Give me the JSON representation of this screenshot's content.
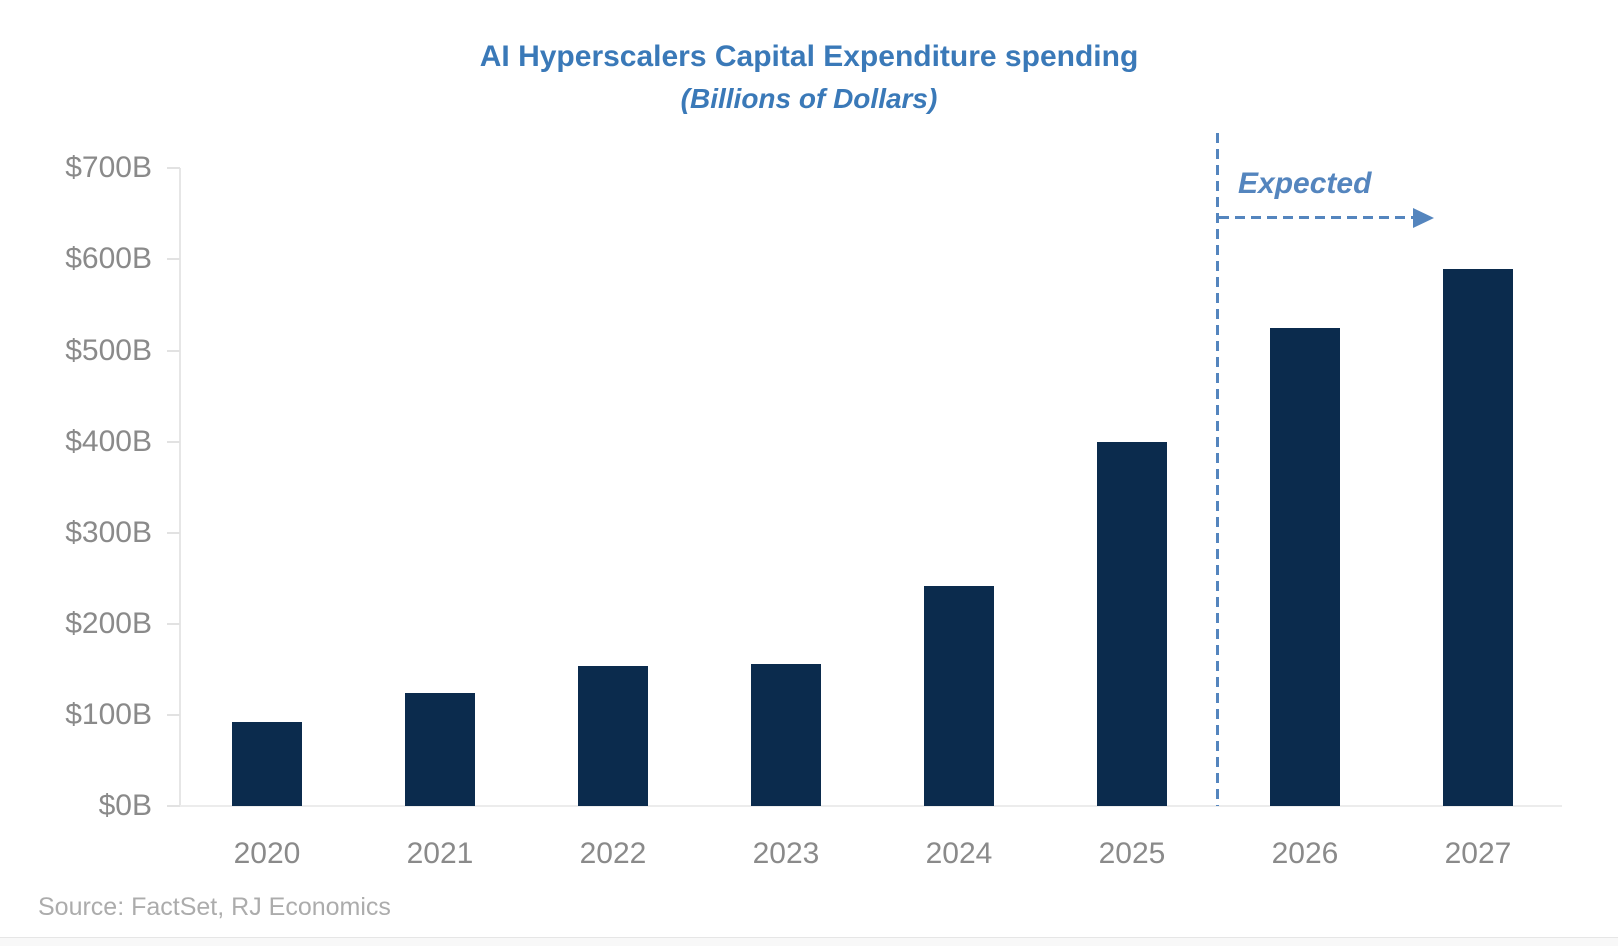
{
  "header": {
    "title_prefix": "AI ",
    "title_misspelled_word": "Hyperscalers",
    "title_suffix": " Capital Expenditure spending",
    "title_full": "AI Hyperscalers Capital Expenditure spending",
    "subtitle": "(Billions of Dollars)"
  },
  "annotation": {
    "expected_label": "Expected"
  },
  "footer": {
    "source": "Source: FactSet, RJ Economics"
  },
  "colors": {
    "bar": "#0B2B4D",
    "title_blue": "#3A79B8",
    "annotation_blue": "#5485BE",
    "squiggle_red": "#E03A2E",
    "axis_text_gray": "#8A8A8A",
    "source_text_gray": "#ACACAC",
    "axis_line_gray": "#E6E6E6"
  },
  "chart_data": {
    "type": "bar",
    "title": "AI Hyperscalers Capital Expenditure spending",
    "subtitle": "(Billions of Dollars)",
    "categories": [
      "2020",
      "2021",
      "2022",
      "2023",
      "2024",
      "2025",
      "2026",
      "2027"
    ],
    "values": [
      92,
      124,
      154,
      156,
      241,
      400,
      525,
      590
    ],
    "value_unit": "billions of dollars",
    "xlabel": "",
    "ylabel": "",
    "ylim": [
      0,
      700
    ],
    "ytick_interval": 100,
    "ytick_labels": [
      "$0B",
      "$100B",
      "$200B",
      "$300B",
      "$400B",
      "$500B",
      "$600B",
      "$700B"
    ],
    "grid": false,
    "legend": false,
    "bar_color": "#0B2B4D",
    "annotation": "Expected",
    "expected_divider_after_category": "2025",
    "expected_categories": [
      "2026",
      "2027"
    ],
    "source": "Source: FactSet, RJ Economics"
  }
}
